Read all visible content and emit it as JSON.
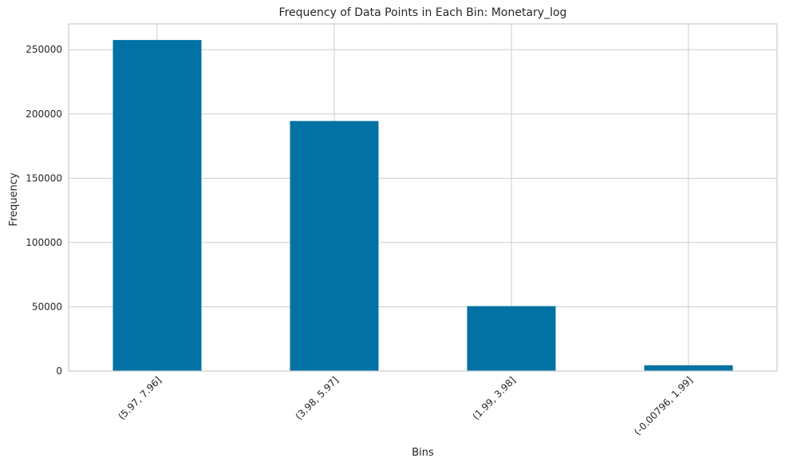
{
  "chart_data": {
    "type": "bar",
    "title": "Frequency of Data Points in Each Bin: Monetary_log",
    "xlabel": "Bins",
    "ylabel": "Frequency",
    "categories": [
      "(5.97, 7.96]",
      "(3.98, 5.97]",
      "(1.99, 3.98]",
      "(-0.00796, 1.99]"
    ],
    "values": [
      257500,
      194500,
      50500,
      4500
    ],
    "ylim": [
      0,
      270000
    ],
    "yticks": [
      0,
      50000,
      100000,
      150000,
      200000,
      250000
    ],
    "grid": true,
    "bar_color": "#0172a3",
    "grid_color": "#cccccc"
  }
}
